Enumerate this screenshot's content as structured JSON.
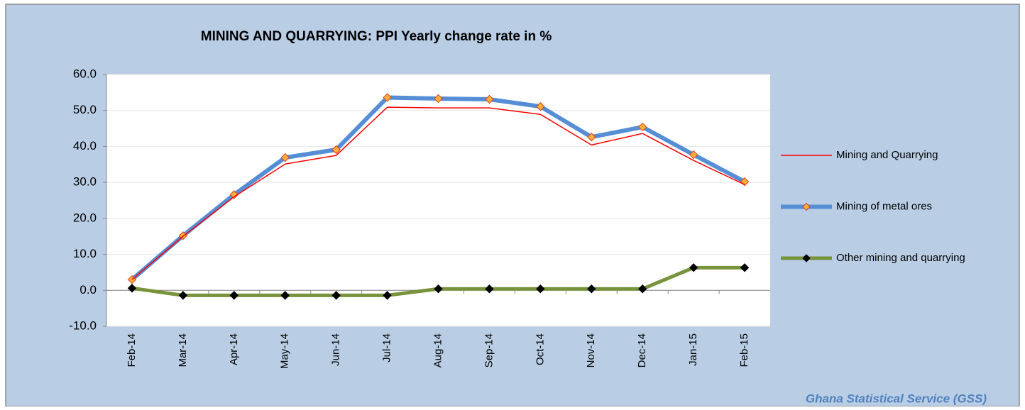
{
  "chart_data": {
    "type": "line",
    "title": "MINING AND QUARRYING:  PPI  Yearly change rate  in %",
    "source": "Ghana Statistical Service (GSS)",
    "categories": [
      "Feb-14",
      "Mar-14",
      "Apr-14",
      "May-14",
      "Jun-14",
      "Jul-14",
      "Aug-14",
      "Sep-14",
      "Oct-14",
      "Nov-14",
      "Dec-14",
      "Jan-15",
      "Feb-15"
    ],
    "series": [
      {
        "name": "Mining and Quarrying",
        "color": "#ff0000",
        "values": [
          3.0,
          15.0,
          26.0,
          35.1,
          37.5,
          50.9,
          50.7,
          50.7,
          48.9,
          40.4,
          43.6,
          36.1,
          29.4
        ]
      },
      {
        "name": "Mining of metal ores",
        "color": "#558ed5",
        "marker_color": "#fbb03b",
        "values": [
          3.0,
          15.2,
          26.6,
          36.9,
          39.1,
          53.6,
          53.3,
          53.1,
          51.1,
          42.6,
          45.4,
          37.7,
          30.2
        ]
      },
      {
        "name": "Other mining and quarrying",
        "color": "#77933c",
        "marker_color": "#000000",
        "values": [
          0.6,
          -1.4,
          -1.4,
          -1.4,
          -1.4,
          -1.4,
          0.4,
          0.4,
          0.4,
          0.4,
          0.4,
          6.3,
          6.3
        ]
      }
    ],
    "ylim": [
      -10,
      60
    ],
    "yticks": [
      {
        "value": -10,
        "label": "-10.0"
      },
      {
        "value": 0,
        "label": "0.0"
      },
      {
        "value": 10,
        "label": "10.0"
      },
      {
        "value": 20,
        "label": "20.0"
      },
      {
        "value": 30,
        "label": "30.0"
      },
      {
        "value": 40,
        "label": "40.0"
      },
      {
        "value": 50,
        "label": "50.0"
      },
      {
        "value": 60,
        "label": "60.0"
      }
    ],
    "grid": true
  }
}
